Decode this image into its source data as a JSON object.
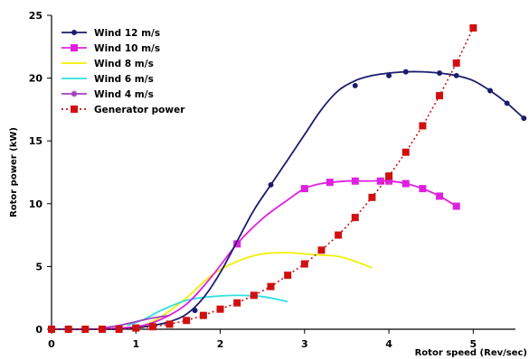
{
  "chart_data": {
    "type": "line",
    "title": "",
    "xlabel": "Rotor speed (Rev/sec)",
    "ylabel": "Rotor power (kW)",
    "xlim": [
      0,
      5.5
    ],
    "ylim": [
      0,
      25
    ],
    "xticks": [
      "0",
      "1",
      "2",
      "3",
      "4",
      "5"
    ],
    "yticks": [
      "0",
      "5",
      "10",
      "15",
      "20",
      "25"
    ],
    "grid": false,
    "legend_position": "top-left",
    "series": [
      {
        "name": "Wind 12 m/s",
        "color": "#1c1c6e",
        "line": "solid",
        "marker": "circle",
        "x": [
          0,
          0.2,
          0.4,
          0.6,
          0.8,
          1.0,
          1.2,
          1.4,
          1.6,
          1.8,
          2.0,
          2.2,
          2.4,
          2.6,
          2.8,
          3.0,
          3.2,
          3.4,
          3.6,
          3.8,
          4.0,
          4.2,
          4.4,
          4.6,
          4.8,
          5.0,
          5.2,
          5.4,
          5.6
        ],
        "y": [
          0,
          0,
          0,
          0,
          0,
          0.1,
          0.3,
          0.6,
          1.2,
          2.5,
          4.5,
          7.0,
          9.5,
          11.5,
          13.5,
          15.5,
          17.5,
          19.0,
          19.8,
          20.2,
          20.4,
          20.5,
          20.5,
          20.4,
          20.2,
          19.8,
          19.0,
          18.0,
          16.8
        ],
        "markers_x": [
          0,
          0.4,
          0.8,
          1.2,
          1.7,
          2.6,
          3.6,
          4.0,
          4.2,
          4.6,
          4.8,
          5.2,
          5.4,
          5.6
        ],
        "markers_y": [
          0,
          0,
          0,
          0.3,
          1.5,
          11.5,
          19.4,
          20.2,
          20.5,
          20.4,
          20.2,
          19.0,
          18.0,
          16.8
        ]
      },
      {
        "name": "Wind 10 m/s",
        "color": "#e020e0",
        "line": "solid",
        "marker": "square",
        "x": [
          0,
          0.5,
          1.0,
          1.3,
          1.6,
          1.9,
          2.2,
          2.5,
          2.8,
          3.0,
          3.2,
          3.5,
          3.7,
          4.0,
          4.2,
          4.4,
          4.6,
          4.8
        ],
        "y": [
          0,
          0,
          0.2,
          0.8,
          2.0,
          4.2,
          6.8,
          8.8,
          10.3,
          11.2,
          11.6,
          11.8,
          11.8,
          11.8,
          11.6,
          11.2,
          10.6,
          9.8
        ],
        "markers_x": [
          2.2,
          3.0,
          3.3,
          3.6,
          3.9,
          4.0,
          4.2,
          4.4,
          4.6,
          4.8
        ],
        "markers_y": [
          6.8,
          11.2,
          11.7,
          11.8,
          11.8,
          11.8,
          11.6,
          11.2,
          10.6,
          9.8
        ]
      },
      {
        "name": "Wind 8 m/s",
        "color": "#f0f000",
        "line": "solid",
        "marker": "none",
        "x": [
          1.1,
          1.3,
          1.6,
          1.9,
          2.2,
          2.5,
          2.8,
          3.0,
          3.2,
          3.4,
          3.6,
          3.8
        ],
        "y": [
          0.3,
          1.0,
          2.5,
          4.3,
          5.4,
          6.0,
          6.1,
          6.0,
          5.9,
          5.8,
          5.4,
          4.9
        ],
        "markers_x": [],
        "markers_y": []
      },
      {
        "name": "Wind 6 m/s",
        "color": "#30e0e0",
        "line": "solid",
        "marker": "none",
        "x": [
          0.9,
          1.1,
          1.3,
          1.6,
          1.9,
          2.2,
          2.5,
          2.8
        ],
        "y": [
          0.3,
          0.8,
          1.5,
          2.3,
          2.6,
          2.7,
          2.6,
          2.2
        ],
        "markers_x": [],
        "markers_y": []
      },
      {
        "name": "Wind 4 m/s",
        "color": "#a040c0",
        "line": "solid",
        "marker": "star",
        "x": [
          0.6,
          0.8,
          1.0,
          1.2,
          1.4
        ],
        "y": [
          0.1,
          0.3,
          0.6,
          0.9,
          1.1
        ],
        "markers_x": [],
        "markers_y": []
      },
      {
        "name": "Generator power",
        "color": "#d01010",
        "line": "dotted",
        "marker": "square",
        "x": [
          0,
          0.2,
          0.4,
          0.6,
          0.8,
          1.0,
          1.2,
          1.4,
          1.6,
          1.8,
          2.0,
          2.2,
          2.4,
          2.6,
          2.8,
          3.0,
          3.2,
          3.4,
          3.6,
          3.8,
          4.0,
          4.2,
          4.4,
          4.6,
          4.8,
          5.0
        ],
        "y": [
          0,
          0,
          0,
          0,
          0,
          0.1,
          0.2,
          0.4,
          0.7,
          1.1,
          1.6,
          2.1,
          2.7,
          3.4,
          4.3,
          5.2,
          6.3,
          7.5,
          8.9,
          10.5,
          12.2,
          14.1,
          16.2,
          18.6,
          21.2,
          24.0
        ],
        "markers_x": [
          0,
          0.2,
          0.4,
          0.6,
          0.8,
          1.0,
          1.2,
          1.4,
          1.6,
          1.8,
          2.0,
          2.2,
          2.4,
          2.6,
          2.8,
          3.0,
          3.2,
          3.4,
          3.6,
          3.8,
          4.0,
          4.2,
          4.4,
          4.6,
          4.8,
          5.0
        ],
        "markers_y": [
          0,
          0,
          0,
          0,
          0,
          0.1,
          0.2,
          0.4,
          0.7,
          1.1,
          1.6,
          2.1,
          2.7,
          3.4,
          4.3,
          5.2,
          6.3,
          7.5,
          8.9,
          10.5,
          12.2,
          14.1,
          16.2,
          18.6,
          21.2,
          24.0
        ]
      }
    ]
  }
}
